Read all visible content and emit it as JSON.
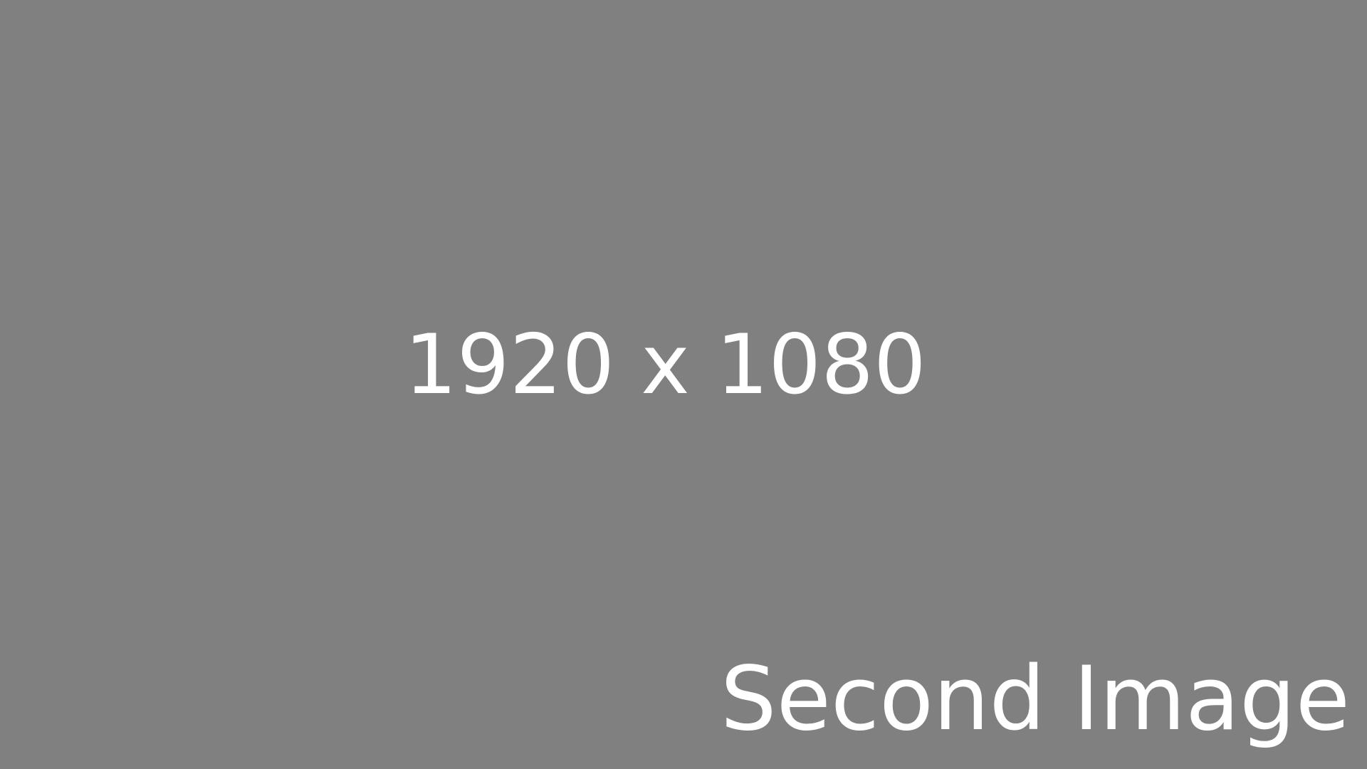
{
  "placeholder": {
    "background_color": "#808080",
    "text_color": "#ffffff",
    "dimensions_text": "1920 x 1080",
    "caption_text": "Second Image"
  }
}
